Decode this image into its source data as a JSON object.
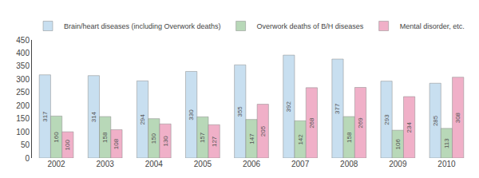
{
  "chart_data": {
    "type": "bar",
    "categories": [
      "2002",
      "2003",
      "2004",
      "2005",
      "2006",
      "2007",
      "2008",
      "2009",
      "2010"
    ],
    "series": [
      {
        "name": "Brain/heart diseases (including Overwork deaths)",
        "color": "#c8dff0",
        "values": [
          317,
          314,
          294,
          330,
          355,
          392,
          377,
          293,
          285
        ]
      },
      {
        "name": "Overwork deaths of B/H diseases",
        "color": "#b8d8b8",
        "values": [
          160,
          158,
          150,
          157,
          147,
          142,
          158,
          106,
          113
        ]
      },
      {
        "name": "Mental disorder, etc.",
        "color": "#f0b0c8",
        "values": [
          100,
          108,
          130,
          127,
          205,
          268,
          269,
          234,
          308
        ]
      }
    ],
    "ylim": [
      0,
      450
    ],
    "yticks": [
      0,
      50,
      100,
      150,
      200,
      250,
      300,
      350,
      400,
      450
    ],
    "grid": false,
    "legend": "upper left",
    "data_labels": true
  }
}
